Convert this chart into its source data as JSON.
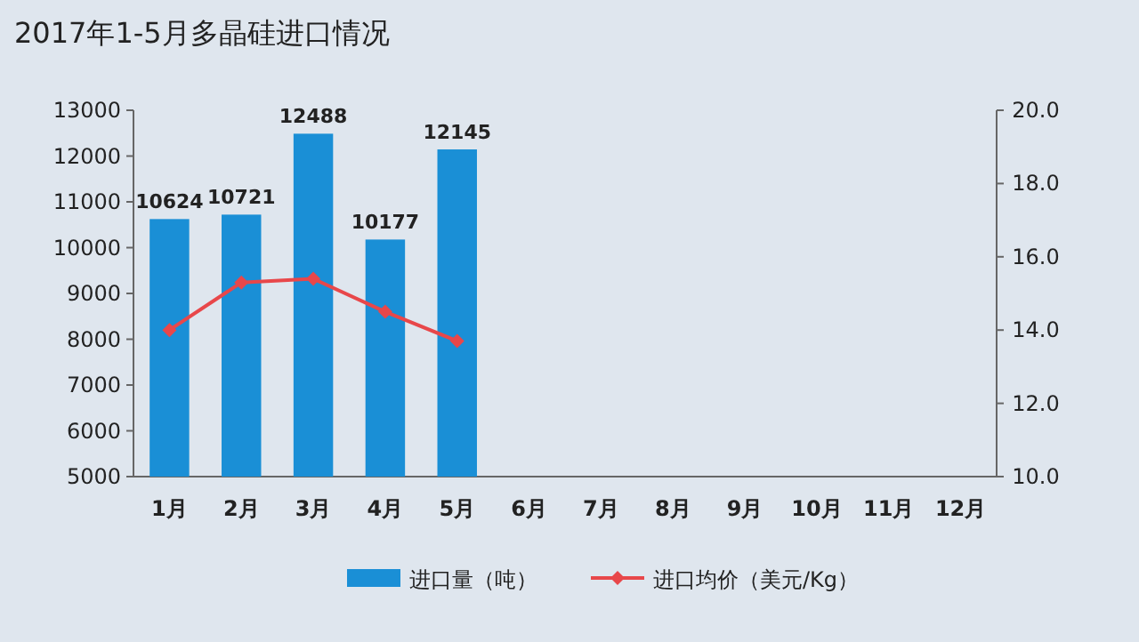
{
  "chart_data": {
    "type": "bar",
    "title": "2017年1-5月多晶硅进口情况",
    "categories": [
      "1月",
      "2月",
      "3月",
      "4月",
      "5月",
      "6月",
      "7月",
      "8月",
      "9月",
      "10月",
      "11月",
      "12月"
    ],
    "series": [
      {
        "name": "进口量（吨）",
        "color": "#1a8fd6",
        "values": [
          10624,
          10721,
          12488,
          10177,
          12145,
          null,
          null,
          null,
          null,
          null,
          null,
          null
        ],
        "value_labels": [
          "10624",
          "10721",
          "12488",
          "10177",
          "12145",
          null,
          null,
          null,
          null,
          null,
          null,
          null
        ]
      },
      {
        "name": "进口均价（美元/Kg）",
        "type": "line",
        "axis": "y2",
        "color": "#e8474a",
        "marker": "diamond",
        "values": [
          14.0,
          15.3,
          15.4,
          14.5,
          13.7,
          null,
          null,
          null,
          null,
          null,
          null,
          null
        ]
      }
    ],
    "ylim": [
      5000,
      13000
    ],
    "yticks": [
      5000,
      6000,
      7000,
      8000,
      9000,
      10000,
      11000,
      12000,
      13000
    ],
    "y2lim": [
      10,
      20
    ],
    "y2ticks": [
      {
        "value": 10,
        "label": "10.0"
      },
      {
        "value": 12,
        "label": "12.0"
      },
      {
        "value": 14,
        "label": "14.0"
      },
      {
        "value": 16,
        "label": "16.0"
      },
      {
        "value": 18,
        "label": "18.0"
      },
      {
        "value": 20,
        "label": "20.0"
      }
    ],
    "grid": false,
    "legend": "bottom"
  }
}
